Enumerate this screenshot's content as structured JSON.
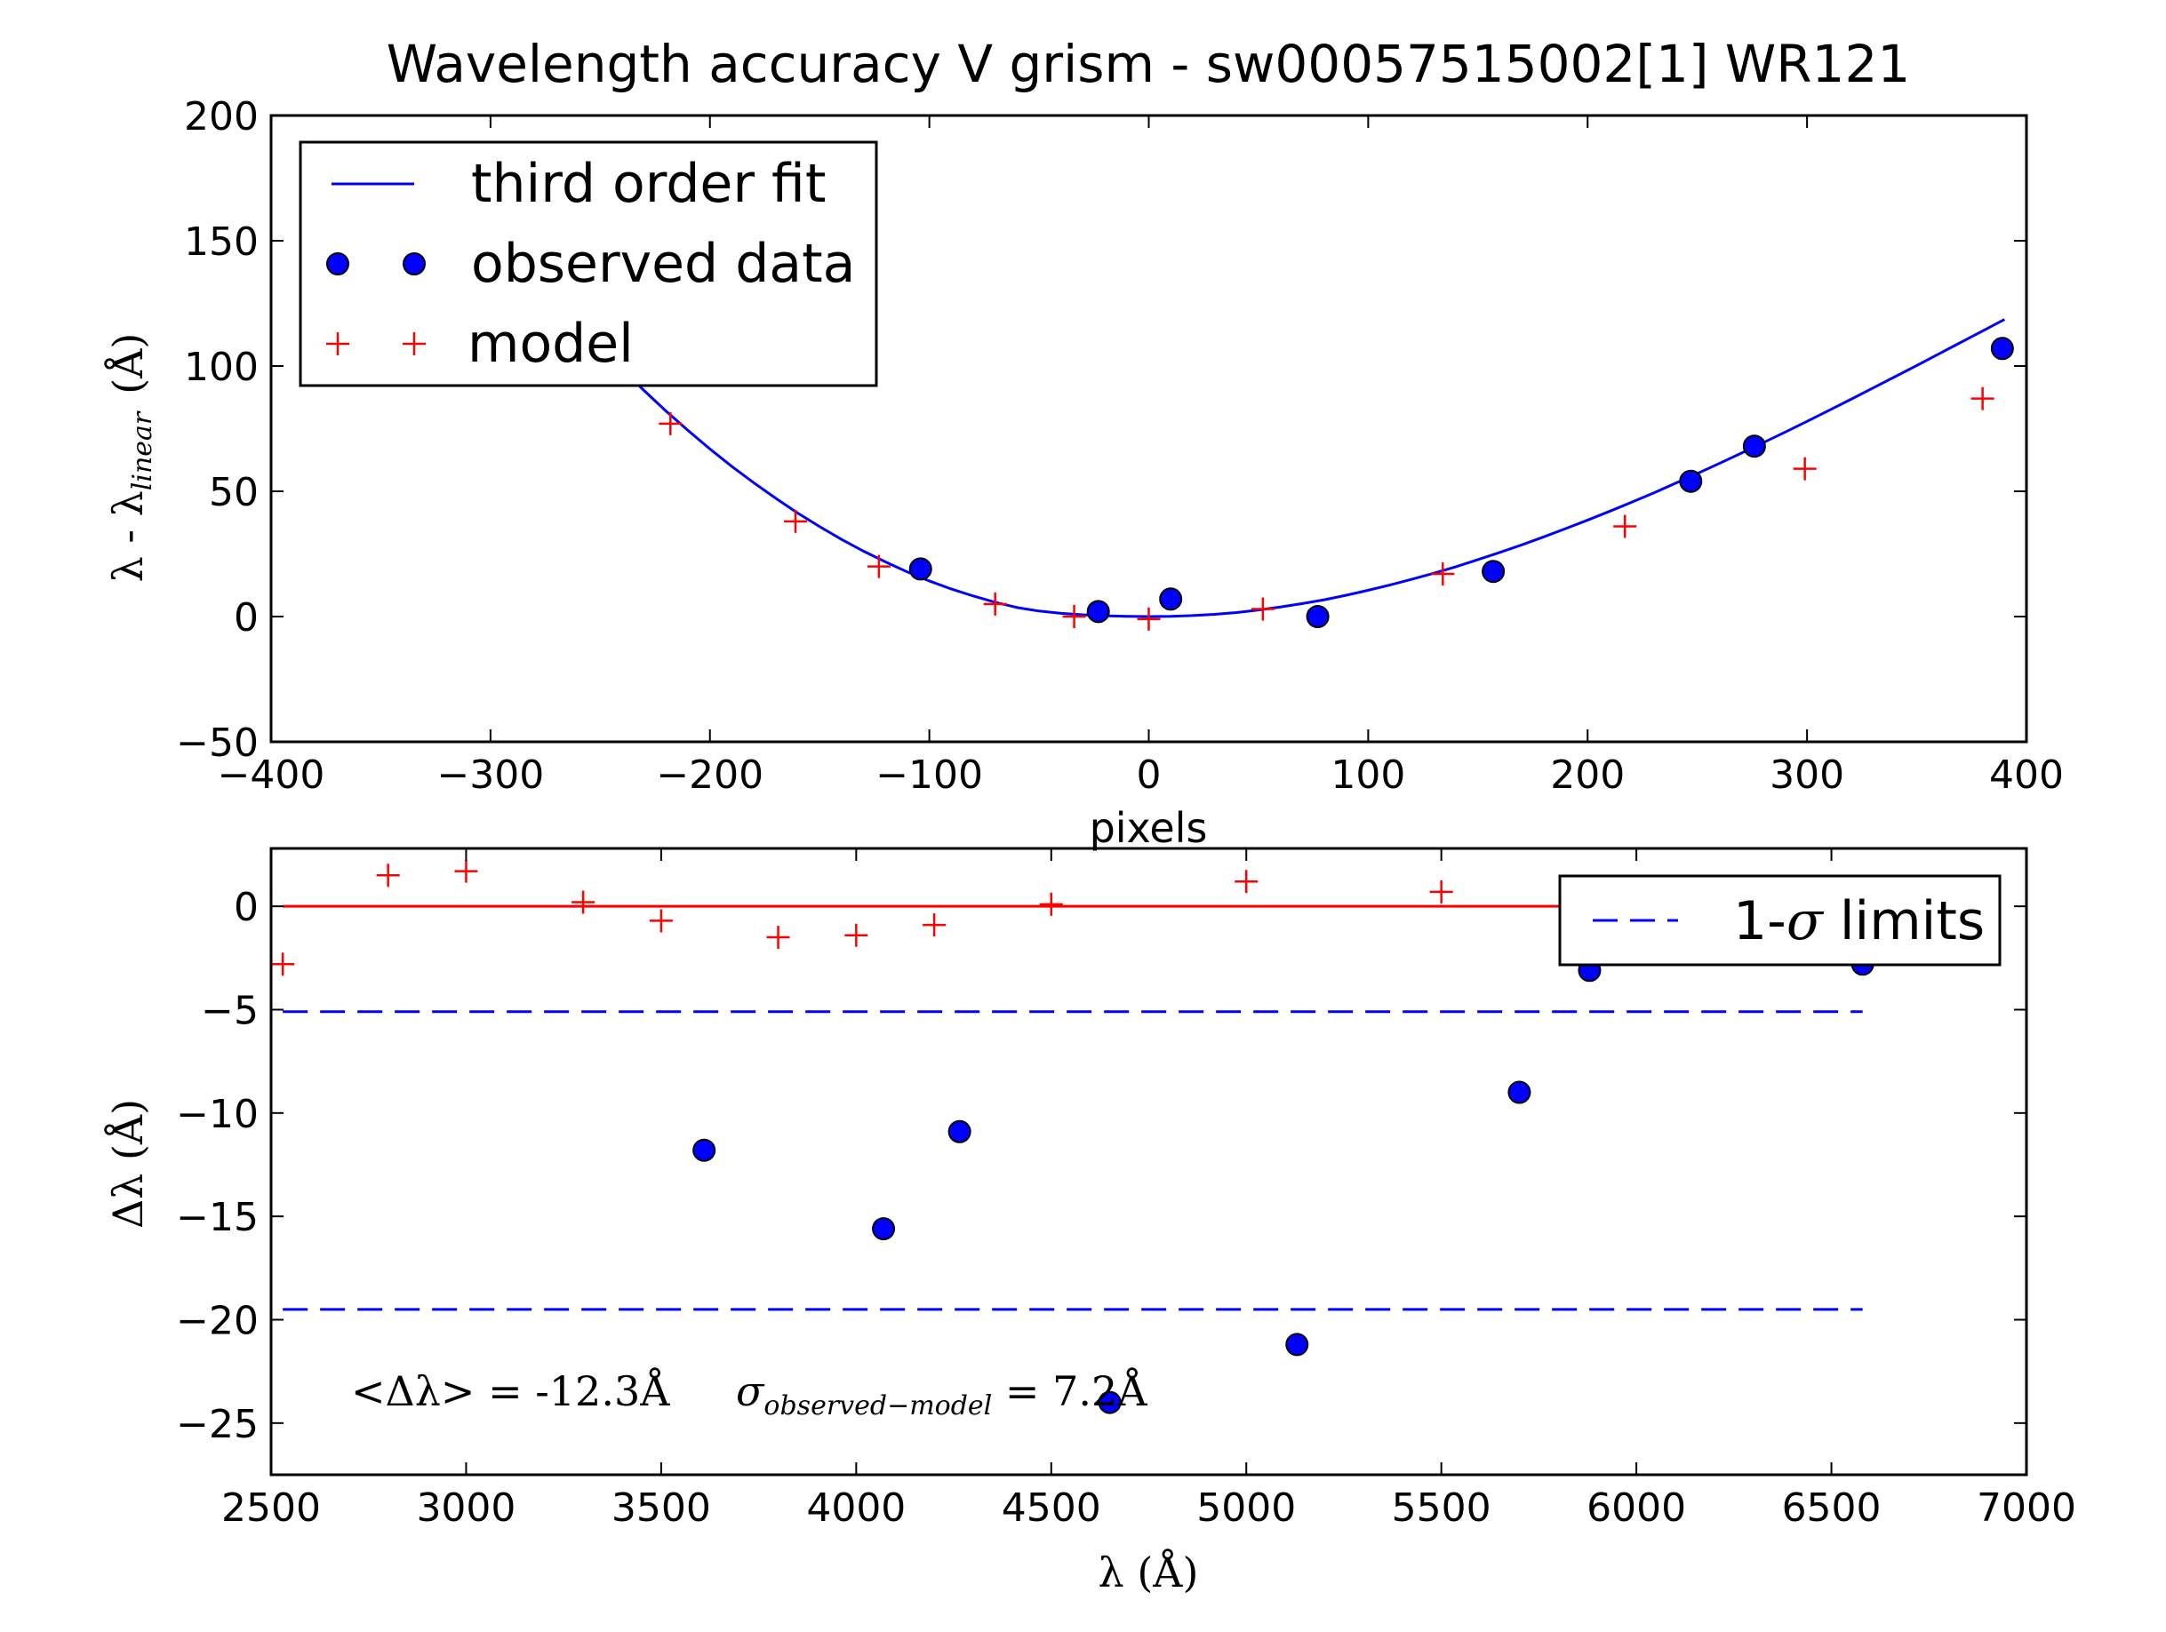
{
  "chart_data": [
    {
      "type": "line",
      "title": "Wavelength accuracy V grism - sw00057515002[1] WR121",
      "xlabel": "pixels",
      "ylabel_main": "λ - λ",
      "ylabel_sub": "linear",
      "ylabel_unit": "(Å)",
      "xlim": [
        -400,
        400
      ],
      "ylim": [
        -50,
        200
      ],
      "xticks": [
        -400,
        -300,
        -200,
        -100,
        0,
        100,
        200,
        300,
        400
      ],
      "xtick_labels": [
        "−400",
        "−300",
        "−200",
        "−100",
        "0",
        "100",
        "200",
        "300",
        "400"
      ],
      "yticks": [
        -50,
        0,
        50,
        100,
        150,
        200
      ],
      "ytick_labels": [
        "−50",
        "0",
        "50",
        "100",
        "150",
        "200"
      ],
      "legend_placement": "top-left",
      "series": [
        {
          "name": "third order fit",
          "kind": "line",
          "color": "#0000ff",
          "fit_points": {
            "x": [
              -240,
              -230,
              -220,
              -210,
              -200,
              -190,
              -180,
              -170,
              -160,
              -150,
              -140,
              -130,
              -120,
              -110,
              -100,
              -90,
              -80,
              -70,
              -60,
              -50,
              -40,
              -30,
              -20,
              -10,
              0,
              10,
              20,
              30,
              40,
              50,
              60,
              70,
              80,
              90,
              100,
              110,
              120,
              130,
              140,
              150,
              160,
              170,
              180,
              190,
              200,
              210,
              220,
              230,
              240,
              250,
              260,
              270,
              280,
              290,
              300,
              310,
              320,
              330,
              340,
              350,
              360,
              370,
              380,
              390
            ],
            "y": [
              98.7,
              90.2,
              82.0,
              74.3,
              66.9,
              59.9,
              53.4,
              47.2,
              41.3,
              35.9,
              30.8,
              26.1,
              21.8,
              17.8,
              14.2,
              11.0,
              8.2,
              5.7,
              3.6,
              2.2,
              1.3,
              0.7,
              0.3,
              0.1,
              0.0,
              0.1,
              0.4,
              0.9,
              1.6,
              2.6,
              3.8,
              5.2,
              6.7,
              8.5,
              10.5,
              12.6,
              14.9,
              17.3,
              19.9,
              22.7,
              25.6,
              28.6,
              31.8,
              35.1,
              38.5,
              42.0,
              45.6,
              49.3,
              53.2,
              57.1,
              61.1,
              65.2,
              69.4,
              73.6,
              77.9,
              82.3,
              86.7,
              91.2,
              95.7,
              100.2,
              104.8,
              109.4,
              114.0,
              118.6
            ]
          }
        },
        {
          "name": "observed data",
          "kind": "marker-circle",
          "color": "#0000ff",
          "points": [
            [
              -104,
              19
            ],
            [
              -23,
              2
            ],
            [
              10,
              7
            ],
            [
              77,
              0
            ],
            [
              157,
              18
            ],
            [
              247,
              54
            ],
            [
              276,
              68
            ],
            [
              389,
              107
            ]
          ]
        },
        {
          "name": "model",
          "kind": "marker-plus",
          "color": "#ff0000",
          "points": [
            [
              -218,
              77
            ],
            [
              -161,
              38
            ],
            [
              -123,
              20
            ],
            [
              -70,
              5
            ],
            [
              -34,
              0
            ],
            [
              0,
              -1
            ],
            [
              52,
              3
            ],
            [
              134,
              17
            ],
            [
              217,
              36
            ],
            [
              299,
              59
            ],
            [
              380,
              87
            ]
          ]
        }
      ]
    },
    {
      "type": "scatter",
      "xlabel": "λ (Å)",
      "ylabel": "Δλ (Å)",
      "xlim": [
        2500,
        7000
      ],
      "ylim": [
        -27.5,
        2.8
      ],
      "xticks": [
        2500,
        3000,
        3500,
        4000,
        4500,
        5000,
        5500,
        6000,
        6500,
        7000
      ],
      "xtick_labels": [
        "2500",
        "3000",
        "3500",
        "4000",
        "4500",
        "5000",
        "5500",
        "6000",
        "6500",
        "7000"
      ],
      "yticks": [
        -25,
        -20,
        -15,
        -10,
        -5,
        0
      ],
      "ytick_labels": [
        "−25",
        "−20",
        "−15",
        "−10",
        "−5",
        "0"
      ],
      "legend_placement": "top-right",
      "annotation": {
        "mean_text": "<Δλ> = -12.3Å",
        "sigma_symbol": "σ",
        "sigma_sub": "observed−model",
        "sigma_value": " = 7.2Å"
      },
      "zero_line": {
        "y": 0,
        "x": [
          2530,
          6580
        ],
        "color": "#ff0000"
      },
      "series": [
        {
          "name": "1-σ limits",
          "legend_label_prefix": "1-",
          "legend_label_sigma": "σ",
          "legend_label_suffix": " limits",
          "kind": "dashed-lines",
          "color": "#0000ff",
          "x": [
            2530,
            6580
          ],
          "levels": [
            -5.1,
            -19.5
          ]
        },
        {
          "kind": "marker-circle",
          "color": "#0000ff",
          "points": [
            [
              3610,
              -11.8
            ],
            [
              4070,
              -15.6
            ],
            [
              4265,
              -10.9
            ],
            [
              4650,
              -24.0
            ],
            [
              5130,
              -21.2
            ],
            [
              5700,
              -9.0
            ],
            [
              5880,
              -3.1
            ],
            [
              6580,
              -2.8
            ]
          ]
        },
        {
          "kind": "marker-plus",
          "color": "#ff0000",
          "points": [
            [
              2530,
              -2.8
            ],
            [
              2800,
              1.5
            ],
            [
              3000,
              1.7
            ],
            [
              3300,
              0.2
            ],
            [
              3500,
              -0.7
            ],
            [
              3800,
              -1.5
            ],
            [
              4000,
              -1.4
            ],
            [
              4200,
              -0.9
            ],
            [
              4500,
              0.1
            ],
            [
              5000,
              1.2
            ],
            [
              5500,
              0.7
            ]
          ]
        }
      ]
    }
  ]
}
